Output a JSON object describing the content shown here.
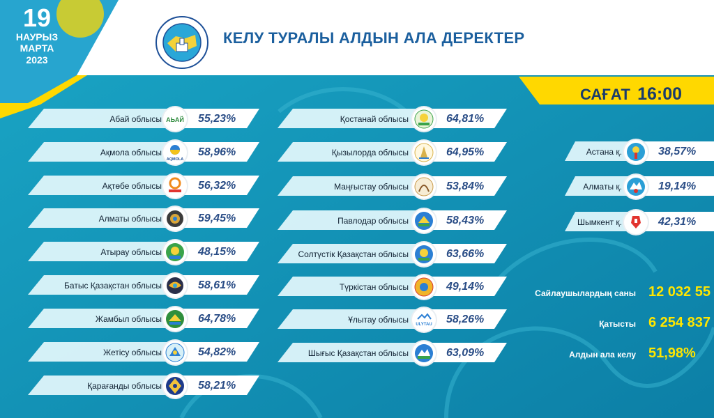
{
  "date": {
    "day": "19",
    "month": "НАУРЫЗ",
    "month2": "МАРТА",
    "year": "2023"
  },
  "title": "КЕЛУ ТУРАЛЫ АЛДЫН АЛА ДЕРЕКТЕР",
  "time": {
    "label": "САҒАТ",
    "value": "16:00"
  },
  "col1": [
    {
      "name": "Абай облысы",
      "pct": "55,23%"
    },
    {
      "name": "Ақмола облысы",
      "pct": "58,96%"
    },
    {
      "name": "Ақтөбе облысы",
      "pct": "56,32%"
    },
    {
      "name": "Алматы облысы",
      "pct": "59,45%"
    },
    {
      "name": "Атырау облысы",
      "pct": "48,15%"
    },
    {
      "name": "Батыс Қазақстан облысы",
      "pct": "58,61%"
    },
    {
      "name": "Жамбыл облысы",
      "pct": "64,78%"
    },
    {
      "name": "Жетісу облысы",
      "pct": "54,82%"
    },
    {
      "name": "Қарағанды облысы",
      "pct": "58,21%"
    }
  ],
  "col2": [
    {
      "name": "Қостанай облысы",
      "pct": "64,81%"
    },
    {
      "name": "Қызылорда облысы",
      "pct": "64,95%"
    },
    {
      "name": "Маңғыстау облысы",
      "pct": "53,84%"
    },
    {
      "name": "Павлодар облысы",
      "pct": "58,43%"
    },
    {
      "name": "Солтүстік Қазақстан облысы",
      "pct": "63,66%"
    },
    {
      "name": "Түркістан облысы",
      "pct": "49,14%"
    },
    {
      "name": "Ұлытау облысы",
      "pct": "58,26%"
    },
    {
      "name": "Шығыс Қазақстан облысы",
      "pct": "63,09%"
    }
  ],
  "col3": [
    {
      "name": "Астана қ.",
      "pct": "38,57%"
    },
    {
      "name": "Алматы қ.",
      "pct": "19,14%"
    },
    {
      "name": "Шымкент қ.",
      "pct": "42,31%"
    }
  ],
  "stats": {
    "voters_label": "Сайлаушылардың саны",
    "voters_value": "12 032 55",
    "turnout_label": "Қатысты",
    "turnout_value": "6 254 837",
    "prelim_label": "Алдын ала келу",
    "prelim_value": "51,98%"
  },
  "logo_text": {
    "abai": "АЬАЙ",
    "akmola": "AQMOLA",
    "ulytau": "ULYTAU"
  },
  "colors": {
    "bg": "#1296b8",
    "title": "#1b5f9e",
    "yellow": "#ffd800",
    "pct": "#2a4d86",
    "stat": "#ffe600"
  }
}
